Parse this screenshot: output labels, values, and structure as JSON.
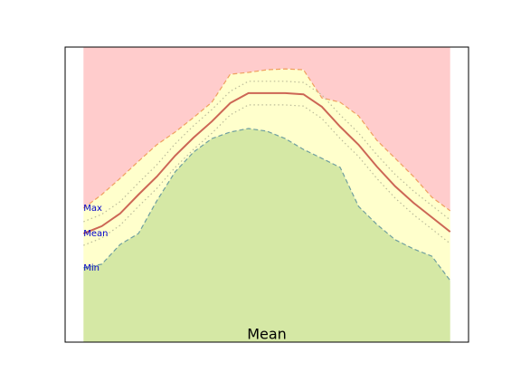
{
  "chart_data": {
    "type": "band",
    "title": "Mean",
    "x": [
      0,
      1,
      2,
      3,
      4,
      5,
      6,
      7,
      8,
      9,
      10,
      11,
      12,
      13,
      14,
      15,
      16,
      17,
      18,
      19,
      20
    ],
    "xlim": [
      -1,
      21
    ],
    "ylim": [
      0,
      100
    ],
    "band_colors": {
      "above": "#ffcccc",
      "between": "#ffffcc",
      "below": "#d5e8a5"
    },
    "series": [
      {
        "name": "Max",
        "color": "#f0a060",
        "style": "dashed",
        "values": [
          45.4,
          50,
          55.5,
          61.3,
          66.9,
          71.2,
          76.1,
          81.3,
          90.8,
          91.4,
          92.3,
          92.6,
          92.3,
          82.8,
          81.3,
          76.7,
          68.4,
          62.3,
          56.1,
          49.1,
          44.5
        ]
      },
      {
        "name": "Mean",
        "color": "#cc6655",
        "style": "solid",
        "values": [
          36.8,
          39.3,
          43.6,
          50,
          56.1,
          63.2,
          69.3,
          74.8,
          81,
          84.4,
          84.4,
          84.4,
          84,
          79.8,
          73,
          66.9,
          59.5,
          52.8,
          47.2,
          42.3,
          37.4
        ]
      },
      {
        "name": "Min",
        "color": "#6f9f9f",
        "style": "dashed",
        "values": [
          25.2,
          26.4,
          33.1,
          36.8,
          47.9,
          57.7,
          64.4,
          69,
          71.2,
          72.4,
          71.5,
          69,
          65.3,
          62.3,
          59.2,
          46,
          39.9,
          34.7,
          31.6,
          29.1,
          20.9
        ]
      },
      {
        "color": "#bbbb99",
        "style": "dotted",
        "values": [
          40.8,
          43.3,
          47.6,
          54,
          60.1,
          67.2,
          73.3,
          78.8,
          85,
          88.4,
          88.4,
          88.4,
          88,
          83.8,
          77,
          70.9,
          63.5,
          56.8,
          51.2,
          46.3,
          41.4
        ]
      },
      {
        "color": "#bbbb99",
        "style": "dotted",
        "values": [
          32.8,
          35.3,
          39.6,
          46,
          52.1,
          59.2,
          65.3,
          70.8,
          77,
          80.4,
          80.4,
          80.4,
          80,
          75.8,
          69,
          62.9,
          55.5,
          48.8,
          43.2,
          38.3,
          33.4
        ]
      }
    ]
  }
}
